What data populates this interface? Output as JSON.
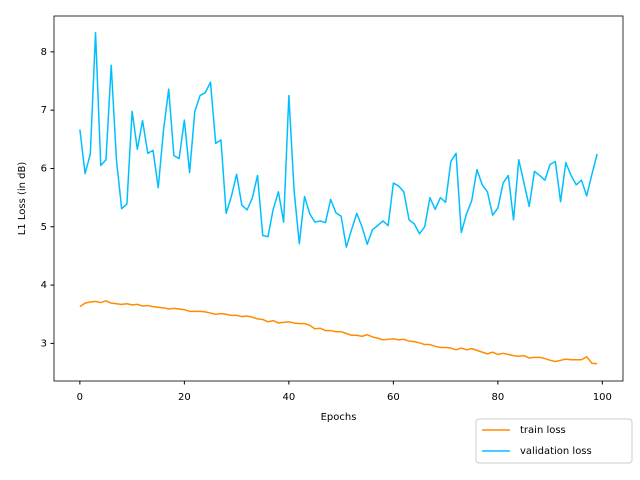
{
  "chart_data": {
    "type": "line",
    "xlabel": "Epochs",
    "ylabel": "L1 Loss (in dB)",
    "x": [
      0,
      1,
      2,
      3,
      4,
      5,
      6,
      7,
      8,
      9,
      10,
      11,
      12,
      13,
      14,
      15,
      16,
      17,
      18,
      19,
      20,
      21,
      22,
      23,
      24,
      25,
      26,
      27,
      28,
      29,
      30,
      31,
      32,
      33,
      34,
      35,
      36,
      37,
      38,
      39,
      40,
      41,
      42,
      43,
      44,
      45,
      46,
      47,
      48,
      49,
      50,
      51,
      52,
      53,
      54,
      55,
      56,
      57,
      58,
      59,
      60,
      61,
      62,
      63,
      64,
      65,
      66,
      67,
      68,
      69,
      70,
      71,
      72,
      73,
      74,
      75,
      76,
      77,
      78,
      79,
      80,
      81,
      82,
      83,
      84,
      85,
      86,
      87,
      88,
      89,
      90,
      91,
      92,
      93,
      94,
      95,
      96,
      97,
      98,
      99
    ],
    "series": [
      {
        "name": "train loss",
        "color": "#ff8c00",
        "values": [
          3.63,
          3.69,
          3.71,
          3.72,
          3.7,
          3.73,
          3.69,
          3.68,
          3.67,
          3.68,
          3.66,
          3.67,
          3.64,
          3.65,
          3.63,
          3.62,
          3.61,
          3.59,
          3.6,
          3.59,
          3.58,
          3.55,
          3.55,
          3.55,
          3.54,
          3.52,
          3.5,
          3.51,
          3.5,
          3.48,
          3.48,
          3.46,
          3.47,
          3.45,
          3.42,
          3.41,
          3.37,
          3.39,
          3.35,
          3.36,
          3.37,
          3.35,
          3.34,
          3.34,
          3.31,
          3.25,
          3.26,
          3.22,
          3.22,
          3.2,
          3.2,
          3.17,
          3.14,
          3.14,
          3.12,
          3.15,
          3.11,
          3.09,
          3.06,
          3.07,
          3.08,
          3.06,
          3.07,
          3.04,
          3.03,
          3.01,
          2.98,
          2.98,
          2.95,
          2.93,
          2.93,
          2.92,
          2.89,
          2.92,
          2.89,
          2.91,
          2.88,
          2.85,
          2.82,
          2.85,
          2.81,
          2.83,
          2.81,
          2.79,
          2.78,
          2.79,
          2.75,
          2.76,
          2.76,
          2.74,
          2.71,
          2.69,
          2.71,
          2.73,
          2.72,
          2.72,
          2.72,
          2.77,
          2.66,
          2.65
        ]
      },
      {
        "name": "validation loss",
        "color": "#00bfff",
        "values": [
          6.67,
          5.91,
          6.25,
          8.33,
          6.05,
          6.15,
          7.77,
          6.15,
          5.31,
          5.39,
          6.98,
          6.33,
          6.82,
          6.26,
          6.31,
          5.67,
          6.65,
          7.36,
          6.22,
          6.17,
          6.83,
          5.93,
          6.98,
          7.25,
          7.3,
          7.48,
          6.43,
          6.49,
          5.23,
          5.52,
          5.9,
          5.37,
          5.29,
          5.49,
          5.88,
          4.85,
          4.83,
          5.3,
          5.6,
          5.08,
          7.25,
          5.62,
          4.71,
          5.52,
          5.22,
          5.08,
          5.1,
          5.07,
          5.47,
          5.24,
          5.18,
          4.65,
          4.95,
          5.23,
          5.0,
          4.7,
          4.95,
          5.02,
          5.1,
          5.02,
          5.75,
          5.7,
          5.6,
          5.12,
          5.05,
          4.88,
          5.0,
          5.5,
          5.3,
          5.5,
          5.42,
          6.12,
          6.26,
          4.9,
          5.22,
          5.45,
          5.98,
          5.72,
          5.6,
          5.2,
          5.32,
          5.75,
          5.88,
          5.12,
          6.15,
          5.75,
          5.35,
          5.95,
          5.88,
          5.8,
          6.07,
          6.12,
          5.43,
          6.1,
          5.88,
          5.72,
          5.8,
          5.53,
          5.9,
          6.25
        ]
      }
    ],
    "xlim": [
      -4.95,
      103.95
    ],
    "xticks": [
      0,
      20,
      40,
      60,
      80,
      100
    ],
    "ylim": [
      2.355,
      8.615
    ],
    "yticks": [
      3,
      4,
      5,
      6,
      7,
      8
    ],
    "grid": false,
    "legend": "lower right"
  }
}
